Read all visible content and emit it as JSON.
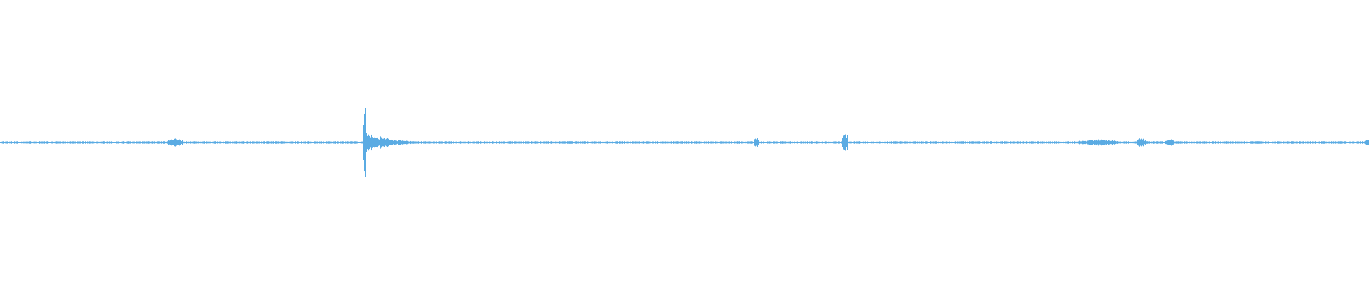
{
  "chart_data": {
    "type": "waveform",
    "title": "",
    "xlabel": "",
    "ylabel": "",
    "axes_visible": false,
    "grid": false,
    "legend": "none",
    "ylim": [
      -1,
      1
    ],
    "series": [
      {
        "color": "#5aabe3",
        "description_of_peaks": [
          {
            "label": "",
            "peak_amplitude": 0.08
          },
          {
            "label": "",
            "peak_amplitude": 0.97
          },
          {
            "label": "",
            "peak_amplitude": 0.12
          },
          {
            "label": "",
            "peak_amplitude": 0.2
          },
          {
            "label": "",
            "peak_amplitude": 0.1
          }
        ]
      }
    ]
  }
}
